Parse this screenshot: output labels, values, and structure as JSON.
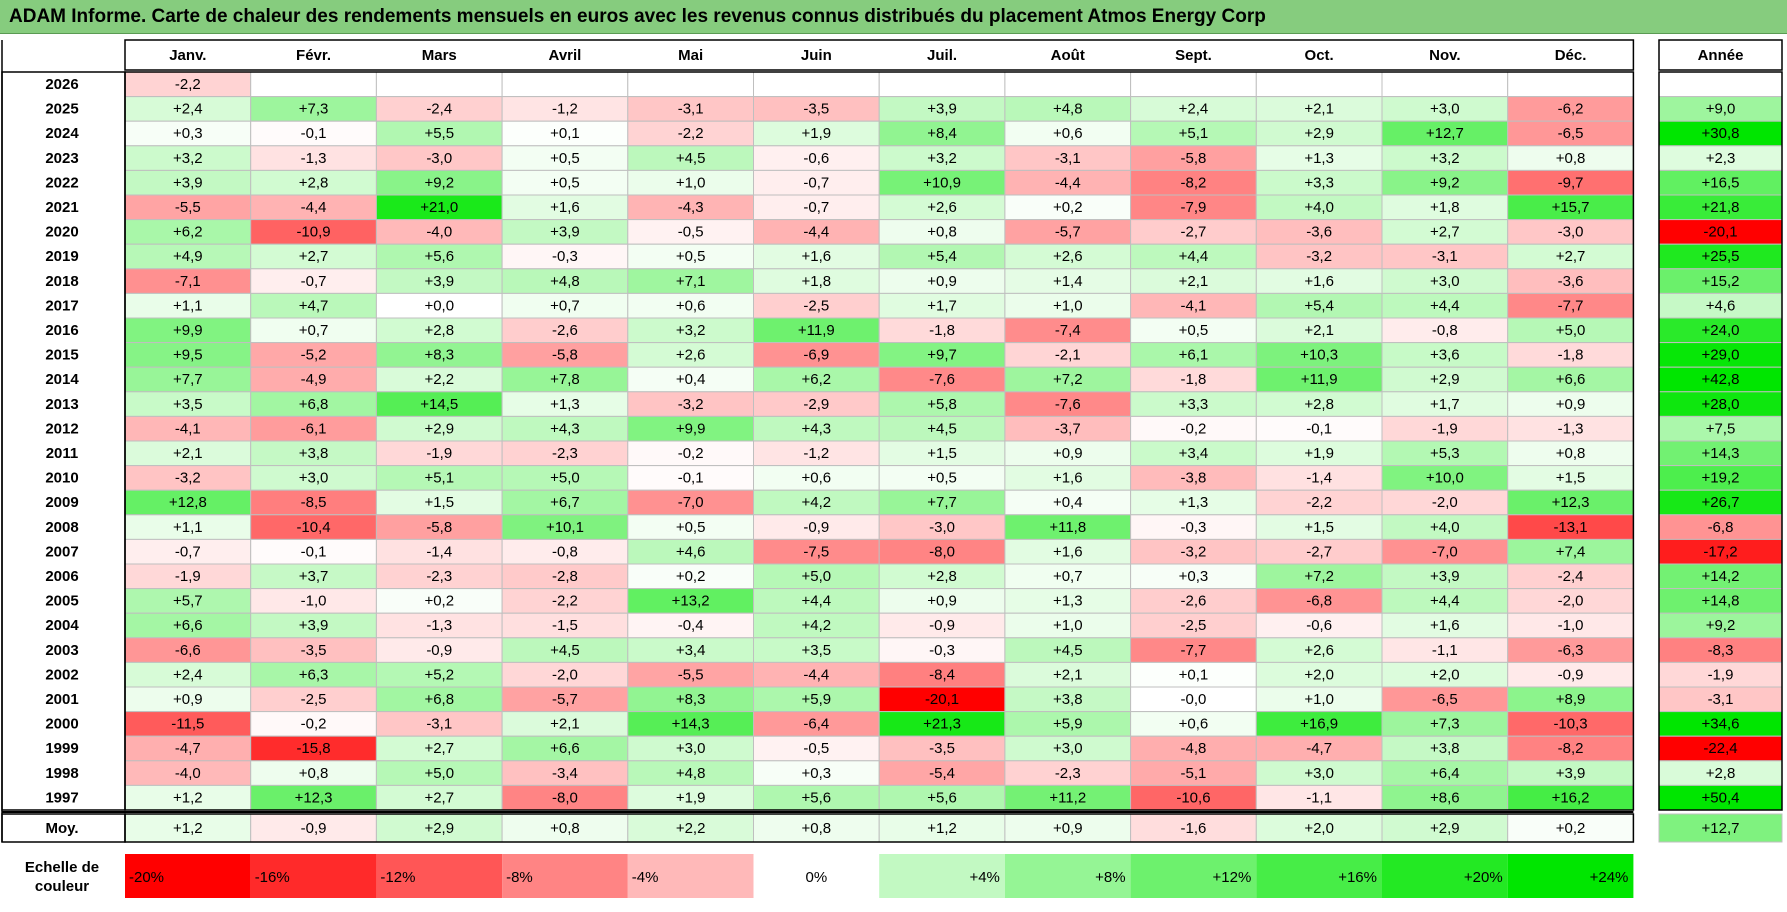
{
  "chart_data": {
    "type": "heatmap",
    "title": "ADAM Informe. Carte de chaleur des rendements mensuels en euros avec les revenus connus distribués du placement Atmos Energy Corp",
    "months": [
      "Janv.",
      "Févr.",
      "Mars",
      "Avril",
      "Mai",
      "Juin",
      "Juil.",
      "Août",
      "Sept.",
      "Oct.",
      "Nov.",
      "Déc."
    ],
    "year_header": "Année",
    "rows": [
      {
        "year": "2026",
        "months": [
          "-2,2",
          "",
          "",
          "",
          "",
          "",
          "",
          "",
          "",
          "",
          "",
          ""
        ],
        "annual": ""
      },
      {
        "year": "2025",
        "months": [
          "+2,4",
          "+7,3",
          "-2,4",
          "-1,2",
          "-3,1",
          "-3,5",
          "+3,9",
          "+4,8",
          "+2,4",
          "+2,1",
          "+3,0",
          "-6,2"
        ],
        "annual": "+9,0"
      },
      {
        "year": "2024",
        "months": [
          "+0,3",
          "-0,1",
          "+5,5",
          "+0,1",
          "-2,2",
          "+1,9",
          "+8,4",
          "+0,6",
          "+5,1",
          "+2,9",
          "+12,7",
          "-6,5"
        ],
        "annual": "+30,8"
      },
      {
        "year": "2023",
        "months": [
          "+3,2",
          "-1,3",
          "-3,0",
          "+0,5",
          "+4,5",
          "-0,6",
          "+3,2",
          "-3,1",
          "-5,8",
          "+1,3",
          "+3,2",
          "+0,8"
        ],
        "annual": "+2,3"
      },
      {
        "year": "2022",
        "months": [
          "+3,9",
          "+2,8",
          "+9,2",
          "+0,5",
          "+1,0",
          "-0,7",
          "+10,9",
          "-4,4",
          "-8,2",
          "+3,3",
          "+9,2",
          "-9,7"
        ],
        "annual": "+16,5"
      },
      {
        "year": "2021",
        "months": [
          "-5,5",
          "-4,4",
          "+21,0",
          "+1,6",
          "-4,3",
          "-0,7",
          "+2,6",
          "+0,2",
          "-7,9",
          "+4,0",
          "+1,8",
          "+15,7"
        ],
        "annual": "+21,8"
      },
      {
        "year": "2020",
        "months": [
          "+6,2",
          "-10,9",
          "-4,0",
          "+3,9",
          "-0,5",
          "-4,4",
          "+0,8",
          "-5,7",
          "-2,7",
          "-3,6",
          "+2,7",
          "-3,0"
        ],
        "annual": "-20,1"
      },
      {
        "year": "2019",
        "months": [
          "+4,9",
          "+2,7",
          "+5,6",
          "-0,3",
          "+0,5",
          "+1,6",
          "+5,4",
          "+2,6",
          "+4,4",
          "-3,2",
          "-3,1",
          "+2,7"
        ],
        "annual": "+25,5"
      },
      {
        "year": "2018",
        "months": [
          "-7,1",
          "-0,7",
          "+3,9",
          "+4,8",
          "+7,1",
          "+1,8",
          "+0,9",
          "+1,4",
          "+2,1",
          "+1,6",
          "+3,0",
          "-3,6"
        ],
        "annual": "+15,2"
      },
      {
        "year": "2017",
        "months": [
          "+1,1",
          "+4,7",
          "+0,0",
          "+0,7",
          "+0,6",
          "-2,5",
          "+1,7",
          "+1,0",
          "-4,1",
          "+5,4",
          "+4,4",
          "-7,7"
        ],
        "annual": "+4,6"
      },
      {
        "year": "2016",
        "months": [
          "+9,9",
          "+0,7",
          "+2,8",
          "-2,6",
          "+3,2",
          "+11,9",
          "-1,8",
          "-7,4",
          "+0,5",
          "+2,1",
          "-0,8",
          "+5,0"
        ],
        "annual": "+24,0"
      },
      {
        "year": "2015",
        "months": [
          "+9,5",
          "-5,2",
          "+8,3",
          "-5,8",
          "+2,6",
          "-6,9",
          "+9,7",
          "-2,1",
          "+6,1",
          "+10,3",
          "+3,6",
          "-1,8"
        ],
        "annual": "+29,0"
      },
      {
        "year": "2014",
        "months": [
          "+7,7",
          "-4,9",
          "+2,2",
          "+7,8",
          "+0,4",
          "+6,2",
          "-7,6",
          "+7,2",
          "-1,8",
          "+11,9",
          "+2,9",
          "+6,6"
        ],
        "annual": "+42,8"
      },
      {
        "year": "2013",
        "months": [
          "+3,5",
          "+6,8",
          "+14,5",
          "+1,3",
          "-3,2",
          "-2,9",
          "+5,8",
          "-7,6",
          "+3,3",
          "+2,8",
          "+1,7",
          "+0,9"
        ],
        "annual": "+28,0"
      },
      {
        "year": "2012",
        "months": [
          "-4,1",
          "-6,1",
          "+2,9",
          "+4,3",
          "+9,9",
          "+4,3",
          "+4,5",
          "-3,7",
          "-0,2",
          "-0,1",
          "-1,9",
          "-1,3"
        ],
        "annual": "+7,5"
      },
      {
        "year": "2011",
        "months": [
          "+2,1",
          "+3,8",
          "-1,9",
          "-2,3",
          "-0,2",
          "-1,2",
          "+1,5",
          "+0,9",
          "+3,4",
          "+1,9",
          "+5,3",
          "+0,8"
        ],
        "annual": "+14,3"
      },
      {
        "year": "2010",
        "months": [
          "-3,2",
          "+3,0",
          "+5,1",
          "+5,0",
          "-0,1",
          "+0,6",
          "+0,5",
          "+1,6",
          "-3,8",
          "-1,4",
          "+10,0",
          "+1,5"
        ],
        "annual": "+19,2"
      },
      {
        "year": "2009",
        "months": [
          "+12,8",
          "-8,5",
          "+1,5",
          "+6,7",
          "-7,0",
          "+4,2",
          "+7,7",
          "+0,4",
          "+1,3",
          "-2,2",
          "-2,0",
          "+12,3"
        ],
        "annual": "+26,7"
      },
      {
        "year": "2008",
        "months": [
          "+1,1",
          "-10,4",
          "-5,8",
          "+10,1",
          "+0,5",
          "-0,9",
          "-3,0",
          "+11,8",
          "-0,3",
          "+1,5",
          "+4,0",
          "-13,1"
        ],
        "annual": "-6,8"
      },
      {
        "year": "2007",
        "months": [
          "-0,7",
          "-0,1",
          "-1,4",
          "-0,8",
          "+4,6",
          "-7,5",
          "-8,0",
          "+1,6",
          "-3,2",
          "-2,7",
          "-7,0",
          "+7,4"
        ],
        "annual": "-17,2"
      },
      {
        "year": "2006",
        "months": [
          "-1,9",
          "+3,7",
          "-2,3",
          "-2,8",
          "+0,2",
          "+5,0",
          "+2,8",
          "+0,7",
          "+0,3",
          "+7,2",
          "+3,9",
          "-2,4"
        ],
        "annual": "+14,2"
      },
      {
        "year": "2005",
        "months": [
          "+5,7",
          "-1,0",
          "+0,2",
          "-2,2",
          "+13,2",
          "+4,4",
          "+0,9",
          "+1,3",
          "-2,6",
          "-6,8",
          "+4,4",
          "-2,0"
        ],
        "annual": "+14,8"
      },
      {
        "year": "2004",
        "months": [
          "+6,6",
          "+3,9",
          "-1,3",
          "-1,5",
          "-0,4",
          "+4,2",
          "-0,9",
          "+1,0",
          "-2,5",
          "-0,6",
          "+1,6",
          "-1,0"
        ],
        "annual": "+9,2"
      },
      {
        "year": "2003",
        "months": [
          "-6,6",
          "-3,5",
          "-0,9",
          "+4,5",
          "+3,4",
          "+3,5",
          "-0,3",
          "+4,5",
          "-7,7",
          "+2,6",
          "-1,1",
          "-6,3"
        ],
        "annual": "-8,3"
      },
      {
        "year": "2002",
        "months": [
          "+2,4",
          "+6,3",
          "+5,2",
          "-2,0",
          "-5,5",
          "-4,4",
          "-8,4",
          "+2,1",
          "+0,1",
          "+2,0",
          "+2,0",
          "-0,9"
        ],
        "annual": "-1,9"
      },
      {
        "year": "2001",
        "months": [
          "+0,9",
          "-2,5",
          "+6,8",
          "-5,7",
          "+8,3",
          "+5,9",
          "-20,1",
          "+3,8",
          "-0,0",
          "+1,0",
          "-6,5",
          "+8,9"
        ],
        "annual": "-3,1"
      },
      {
        "year": "2000",
        "months": [
          "-11,5",
          "-0,2",
          "-3,1",
          "+2,1",
          "+14,3",
          "-6,4",
          "+21,3",
          "+5,9",
          "+0,6",
          "+16,9",
          "+7,3",
          "-10,3"
        ],
        "annual": "+34,6"
      },
      {
        "year": "1999",
        "months": [
          "-4,7",
          "-15,8",
          "+2,7",
          "+6,6",
          "+3,0",
          "-0,5",
          "-3,5",
          "+3,0",
          "-4,8",
          "-4,7",
          "+3,8",
          "-8,2"
        ],
        "annual": "-22,4"
      },
      {
        "year": "1998",
        "months": [
          "-4,0",
          "+0,8",
          "+5,0",
          "-3,4",
          "+4,8",
          "+0,3",
          "-5,4",
          "-2,3",
          "-5,1",
          "+3,0",
          "+6,4",
          "+3,9"
        ],
        "annual": "+2,8"
      },
      {
        "year": "1997",
        "months": [
          "+1,2",
          "+12,3",
          "+2,7",
          "-8,0",
          "+1,9",
          "+5,6",
          "+5,6",
          "+11,2",
          "-10,6",
          "-1,1",
          "+8,6",
          "+16,2"
        ],
        "annual": "+50,4"
      }
    ],
    "average": {
      "label": "Moy.",
      "months": [
        "+1,2",
        "-0,9",
        "+2,9",
        "+0,8",
        "+2,2",
        "+0,8",
        "+1,2",
        "+0,9",
        "-1,6",
        "+2,0",
        "+2,9",
        "+0,2"
      ],
      "annual": "+12,7"
    },
    "legend": {
      "label_line1": "Echelle de",
      "label_line2": "couleur",
      "stops": [
        {
          "label": "-20%",
          "value": -20
        },
        {
          "label": "-16%",
          "value": -16
        },
        {
          "label": "-12%",
          "value": -12
        },
        {
          "label": "-8%",
          "value": -8
        },
        {
          "label": "-4%",
          "value": -4
        },
        {
          "label": "0%",
          "value": 0
        },
        {
          "label": "+4%",
          "value": 4
        },
        {
          "label": "+8%",
          "value": 8
        },
        {
          "label": "+12%",
          "value": 12
        },
        {
          "label": "+16%",
          "value": 16
        },
        {
          "label": "+20%",
          "value": 20
        },
        {
          "label": "+24%",
          "value": 24
        }
      ]
    },
    "colors": {
      "negative_max": "#ff0000",
      "neutral": "#ffffff",
      "positive_max": "#00e600",
      "title_bg": "#86cc7e",
      "grid": "#bfbfbf",
      "border": "#000000"
    }
  }
}
